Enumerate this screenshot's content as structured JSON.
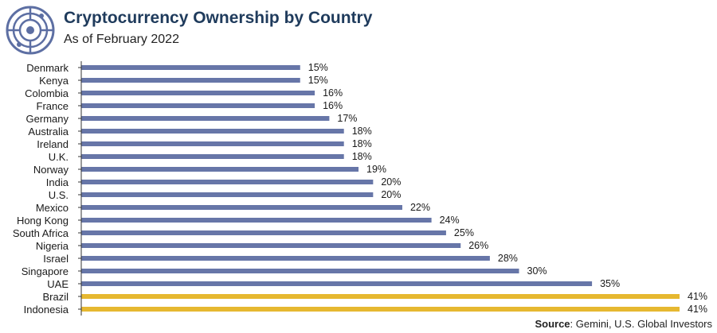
{
  "header": {
    "title": "Cryptocurrency Ownership by Country",
    "subtitle": "As of February 2022"
  },
  "footer": {
    "source_label": "Source",
    "source_text": ": Gemini, U.S. Global Investors"
  },
  "logo": {
    "icon": "bitcoin-circuit-icon"
  },
  "colors": {
    "bar": "#6776a8",
    "highlight": "#e6b830",
    "axis": "#333333",
    "title": "#1f3b5c",
    "logo": "#5d6fa3"
  },
  "chart_data": {
    "type": "bar",
    "orientation": "horizontal",
    "unit": "%",
    "xlim": [
      0,
      41
    ],
    "grid": false,
    "categories": [
      "Denmark",
      "Kenya",
      "Colombia",
      "France",
      "Germany",
      "Australia",
      "Ireland",
      "U.K.",
      "Norway",
      "India",
      "U.S.",
      "Mexico",
      "Hong Kong",
      "South Africa",
      "Nigeria",
      "Israel",
      "Singapore",
      "UAE",
      "Brazil",
      "Indonesia"
    ],
    "values": [
      15,
      15,
      16,
      16,
      17,
      18,
      18,
      18,
      19,
      20,
      20,
      22,
      24,
      25,
      26,
      28,
      30,
      35,
      41,
      41
    ],
    "highlighted": [
      "Brazil",
      "Indonesia"
    ]
  }
}
